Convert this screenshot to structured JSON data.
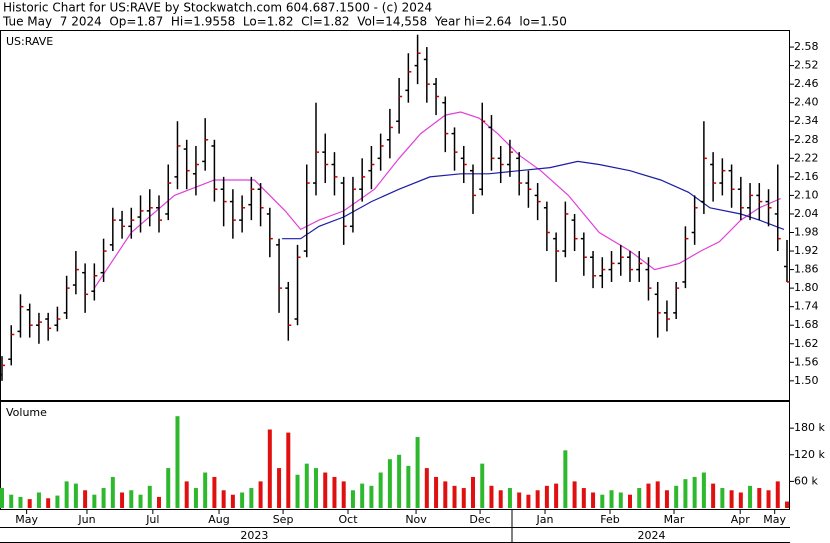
{
  "header": {
    "line1": "Historic Chart for US:RAVE by Stockwatch.com 604.687.1500 - (c) 2024",
    "line2": "Tue May  7 2024  Op=1.87  Hi=1.9558  Lo=1.82  Cl=1.82  Vol=14,558  Year hi=2.64  lo=1.50"
  },
  "chart_data": [
    {
      "type": "ohlc",
      "label": "US:RAVE",
      "color": "#000000",
      "close_color": "#cc0000",
      "x": [
        0,
        3,
        6,
        9,
        12,
        15,
        18,
        21,
        24,
        27,
        30,
        33,
        36,
        39,
        42,
        45,
        48,
        51,
        54,
        57,
        60,
        63,
        66,
        69,
        72,
        75,
        78,
        81,
        84,
        87,
        90,
        93,
        96,
        99,
        102,
        105,
        108,
        111,
        114,
        117,
        120,
        123,
        126,
        129,
        132,
        135,
        138,
        141,
        144,
        147,
        150,
        153,
        156,
        159,
        162,
        165,
        168,
        171,
        174,
        177,
        180,
        183,
        186,
        189,
        192,
        195,
        198,
        201,
        204,
        207,
        210,
        213,
        216,
        219,
        222,
        225,
        228,
        231,
        234,
        237,
        240,
        243,
        246,
        249,
        252,
        255
      ],
      "open": [
        1.52,
        1.57,
        1.66,
        1.73,
        1.68,
        1.7,
        1.68,
        1.72,
        1.81,
        1.85,
        1.79,
        1.85,
        1.94,
        2.02,
        2.0,
        2.03,
        2.05,
        2.06,
        2.04,
        2.16,
        2.25,
        2.17,
        2.21,
        2.26,
        2.12,
        2.08,
        2.02,
        2.07,
        2.12,
        2.04,
        1.94,
        1.8,
        1.7,
        1.92,
        2.14,
        2.24,
        2.2,
        2.14,
        2.0,
        2.12,
        2.18,
        2.22,
        2.28,
        2.34,
        2.44,
        2.52,
        2.54,
        2.46,
        2.4,
        2.3,
        2.22,
        2.18,
        2.12,
        2.32,
        2.22,
        2.2,
        2.22,
        2.14,
        2.1,
        2.06,
        1.96,
        1.92,
        2.02,
        1.96,
        1.9,
        1.84,
        1.86,
        1.88,
        1.9,
        1.86,
        1.86,
        1.78,
        1.72,
        1.72,
        1.82,
        1.98,
        2.08,
        2.2,
        2.14,
        2.18,
        2.12,
        2.06,
        2.1,
        2.08,
        2.04,
        1.87
      ],
      "high": [
        1.58,
        1.68,
        1.78,
        1.75,
        1.72,
        1.72,
        1.74,
        1.84,
        1.92,
        1.88,
        1.88,
        1.96,
        2.06,
        2.05,
        2.06,
        2.1,
        2.12,
        2.1,
        2.2,
        2.34,
        2.28,
        2.26,
        2.35,
        2.28,
        2.16,
        2.12,
        2.1,
        2.16,
        2.14,
        2.06,
        1.96,
        1.82,
        1.94,
        2.2,
        2.4,
        2.3,
        2.24,
        2.16,
        2.16,
        2.22,
        2.26,
        2.3,
        2.38,
        2.48,
        2.56,
        2.62,
        2.58,
        2.48,
        2.42,
        2.32,
        2.26,
        2.2,
        2.4,
        2.36,
        2.26,
        2.28,
        2.24,
        2.18,
        2.14,
        2.08,
        1.98,
        2.08,
        2.04,
        1.98,
        1.92,
        1.9,
        1.92,
        1.94,
        1.92,
        1.92,
        1.9,
        1.82,
        1.76,
        1.82,
        2.0,
        2.1,
        2.34,
        2.24,
        2.22,
        2.2,
        2.16,
        2.14,
        2.14,
        2.12,
        2.2,
        1.9558
      ],
      "low": [
        1.5,
        1.55,
        1.64,
        1.64,
        1.62,
        1.63,
        1.66,
        1.7,
        1.78,
        1.72,
        1.76,
        1.82,
        1.92,
        1.96,
        1.96,
        1.98,
        2.0,
        1.98,
        2.02,
        2.12,
        2.12,
        2.1,
        2.18,
        2.08,
        2.0,
        1.96,
        1.98,
        2.02,
        2.0,
        1.9,
        1.72,
        1.63,
        1.68,
        1.9,
        2.1,
        2.14,
        2.1,
        1.94,
        1.98,
        2.08,
        2.12,
        2.18,
        2.22,
        2.3,
        2.4,
        2.46,
        2.4,
        2.36,
        2.24,
        2.18,
        2.14,
        2.04,
        2.1,
        2.18,
        2.14,
        2.16,
        2.1,
        2.06,
        2.02,
        1.92,
        1.82,
        1.9,
        1.92,
        1.84,
        1.8,
        1.8,
        1.82,
        1.84,
        1.82,
        1.82,
        1.76,
        1.64,
        1.66,
        1.7,
        1.8,
        1.94,
        2.04,
        2.08,
        2.1,
        2.06,
        2.02,
        2.02,
        2.02,
        2.0,
        1.92,
        1.82
      ],
      "close": [
        1.55,
        1.65,
        1.74,
        1.68,
        1.69,
        1.67,
        1.7,
        1.8,
        1.86,
        1.78,
        1.84,
        1.92,
        2.02,
        2.0,
        2.02,
        2.05,
        2.06,
        2.02,
        2.14,
        2.26,
        2.18,
        2.2,
        2.28,
        2.12,
        2.08,
        2.02,
        2.06,
        2.12,
        2.06,
        1.96,
        1.8,
        1.68,
        1.9,
        2.14,
        2.24,
        2.2,
        2.16,
        2.0,
        2.12,
        2.16,
        2.2,
        2.26,
        2.32,
        2.42,
        2.5,
        2.56,
        2.46,
        2.42,
        2.3,
        2.24,
        2.2,
        2.1,
        2.34,
        2.22,
        2.2,
        2.24,
        2.14,
        2.12,
        2.08,
        1.98,
        1.92,
        2.04,
        1.96,
        1.9,
        1.84,
        1.86,
        1.88,
        1.9,
        1.86,
        1.88,
        1.8,
        1.72,
        1.7,
        1.8,
        1.96,
        2.06,
        2.22,
        2.14,
        2.18,
        2.12,
        2.06,
        2.1,
        2.08,
        2.06,
        1.96,
        1.82
      ],
      "series": [
        {
          "color": "#e040d8",
          "x": [
            30,
            42,
            56,
            69,
            82,
            92,
            97,
            103,
            111,
            121,
            129,
            136,
            144,
            149,
            155,
            161,
            168,
            175,
            184,
            194,
            204,
            212,
            220,
            227,
            233,
            240,
            246,
            253
          ],
          "values": [
            1.8,
            1.98,
            2.1,
            2.15,
            2.15,
            2.05,
            1.99,
            2.02,
            2.05,
            2.12,
            2.22,
            2.3,
            2.36,
            2.37,
            2.35,
            2.3,
            2.23,
            2.18,
            2.1,
            1.98,
            1.92,
            1.86,
            1.88,
            1.92,
            1.95,
            2.02,
            2.06,
            2.09
          ]
        },
        {
          "color": "#1c1ca8",
          "x": [
            91,
            97,
            103,
            111,
            120,
            129,
            139,
            149,
            158,
            168,
            178,
            187,
            194,
            204,
            214,
            223,
            230,
            240,
            246,
            254
          ],
          "values": [
            1.96,
            1.96,
            2.0,
            2.03,
            2.08,
            2.12,
            2.16,
            2.17,
            2.17,
            2.18,
            2.19,
            2.21,
            2.2,
            2.18,
            2.15,
            2.11,
            2.06,
            2.04,
            2.02,
            1.99
          ]
        }
      ],
      "xlim": [
        0,
        255
      ],
      "ylim": [
        1.438,
        2.632
      ],
      "yticks": [
        {
          "value": 1.5,
          "label": "1.50"
        },
        1.56,
        1.62,
        1.68,
        1.74,
        {
          "value": 1.8,
          "label": "1.80"
        },
        1.86,
        1.92,
        1.98,
        2.04,
        {
          "value": 2.1,
          "label": "2.10"
        },
        2.16,
        2.22,
        2.28,
        2.34,
        {
          "value": 2.4,
          "label": "2.40"
        },
        2.46,
        2.52,
        2.58
      ]
    },
    {
      "type": "bar",
      "label": "Volume",
      "up_color": "#2db82d",
      "down_color": "#e01010",
      "values": [
        45000,
        30000,
        25000,
        20000,
        35000,
        22000,
        28000,
        60000,
        55000,
        40000,
        30000,
        45000,
        70000,
        35000,
        40000,
        30000,
        50000,
        25000,
        90000,
        207000,
        60000,
        45000,
        80000,
        70000,
        40000,
        30000,
        35000,
        45000,
        60000,
        177000,
        90000,
        170000,
        75000,
        100000,
        90000,
        80000,
        70000,
        60000,
        40000,
        55000,
        50000,
        80000,
        110000,
        120000,
        95000,
        160000,
        90000,
        70000,
        60000,
        50000,
        45000,
        70000,
        100000,
        50000,
        40000,
        45000,
        35000,
        30000,
        40000,
        50000,
        55000,
        130000,
        60000,
        45000,
        35000,
        30000,
        40000,
        35000,
        30000,
        45000,
        55000,
        60000,
        40000,
        50000,
        65000,
        70000,
        80000,
        55000,
        45000,
        40000,
        35000,
        50000,
        45000,
        40000,
        60000,
        14558
      ],
      "xlim": [
        0,
        255
      ],
      "ylim": [
        0,
        239000
      ],
      "yticks": [
        {
          "value": 60000,
          "label": "60 k"
        },
        {
          "value": 120000,
          "label": "120 k"
        },
        {
          "value": 180000,
          "label": "180 k"
        }
      ],
      "xticks": [
        {
          "value": 8,
          "label": "May"
        },
        {
          "value": 27.6,
          "label": "Jun"
        },
        {
          "value": 49,
          "label": "Jul"
        },
        {
          "value": 70.5,
          "label": "Aug"
        },
        {
          "value": 91.3,
          "label": "Sep"
        },
        {
          "value": 112.4,
          "label": "Oct"
        },
        {
          "value": 134.5,
          "label": "Nov"
        },
        {
          "value": 155.3,
          "label": "Dec"
        },
        {
          "value": 176.4,
          "label": "Jan"
        },
        {
          "value": 197.5,
          "label": "Feb"
        },
        {
          "value": 218.3,
          "label": "Mar"
        },
        {
          "value": 239.8,
          "label": "Apr"
        },
        {
          "value": 251,
          "label": "May"
        }
      ],
      "x2ticks": [
        {
          "value": 82,
          "label": "2023"
        },
        {
          "value": 211,
          "label": "2024"
        }
      ]
    }
  ]
}
